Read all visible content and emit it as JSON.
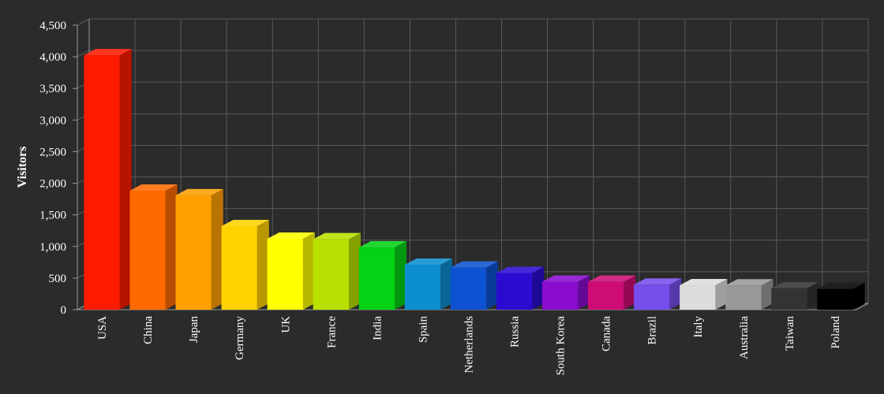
{
  "chart_data": {
    "type": "bar",
    "categories": [
      "USA",
      "China",
      "Japan",
      "Germany",
      "UK",
      "France",
      "India",
      "Spain",
      "Netherlands",
      "Russia",
      "South Korea",
      "Canada",
      "Brazil",
      "Italy",
      "Australia",
      "Taiwan",
      "Poland"
    ],
    "values": [
      4025,
      1882,
      1809,
      1322,
      1122,
      1114,
      984,
      711,
      665,
      580,
      443,
      441,
      395,
      386,
      384,
      338,
      328
    ],
    "colors": [
      "#ff1a00",
      "#ff6a00",
      "#ffa000",
      "#ffd200",
      "#ffff00",
      "#b8e000",
      "#04d215",
      "#0d8ecf",
      "#0d52d1",
      "#2a0cd0",
      "#8a0ccf",
      "#cd0d74",
      "#754deb",
      "#dddddd",
      "#999999",
      "#333333",
      "#000000"
    ],
    "ylabel": "Visitors",
    "xlabel": "",
    "ylim": [
      0,
      4500
    ],
    "yticks": [
      "0",
      "500",
      "1,000",
      "1,500",
      "2,000",
      "2,500",
      "3,000",
      "3,500",
      "4,000",
      "4,500"
    ],
    "grid": true,
    "style": "3d"
  }
}
